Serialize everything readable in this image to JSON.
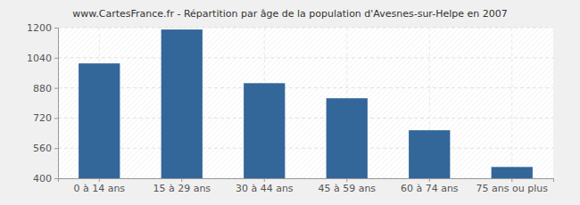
{
  "chart_data": {
    "type": "bar",
    "title": "www.CartesFrance.fr - Répartition par âge de la population d'Avesnes-sur-Helpe en 2007",
    "categories": [
      "0 à 14 ans",
      "15 à 29 ans",
      "30 à 44 ans",
      "45 à 59 ans",
      "60 à 74 ans",
      "75 ans ou plus"
    ],
    "values": [
      1010,
      1190,
      905,
      825,
      655,
      460
    ],
    "color": "#336699",
    "ylim": [
      400,
      1200
    ],
    "yticks": [
      400,
      560,
      720,
      880,
      1040,
      1200
    ],
    "grid": true
  }
}
